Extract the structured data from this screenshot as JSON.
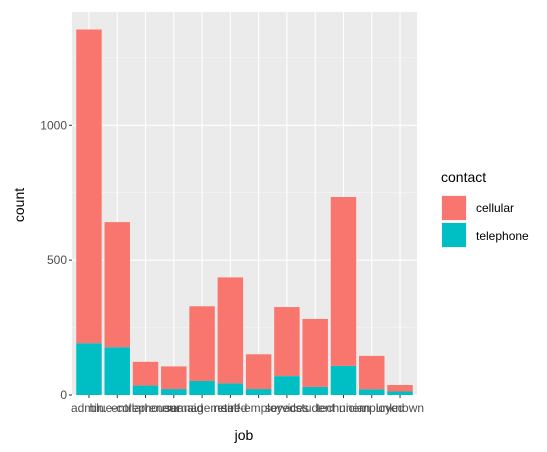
{
  "chart_data": {
    "type": "bar",
    "stacked": true,
    "categories": [
      "admin.",
      "blue-collar",
      "entrepreneur",
      "housemaid",
      "management",
      "retired",
      "self-employed",
      "services",
      "student",
      "technician",
      "unemployed",
      "unknown"
    ],
    "series": [
      {
        "name": "cellular",
        "color": "#F8766D",
        "values": [
          1163,
          464,
          88,
          84,
          277,
          393,
          129,
          256,
          252,
          626,
          124,
          24
        ]
      },
      {
        "name": "telephone",
        "color": "#00BFC4",
        "values": [
          192,
          177,
          35,
          22,
          52,
          43,
          22,
          70,
          30,
          108,
          21,
          13
        ]
      }
    ],
    "xlabel": "job",
    "ylabel": "count",
    "ylim": [
      0,
      1420
    ],
    "yticks": [
      0,
      500,
      1000
    ],
    "grid": true,
    "legend": {
      "title": "contact",
      "position": "right"
    }
  }
}
